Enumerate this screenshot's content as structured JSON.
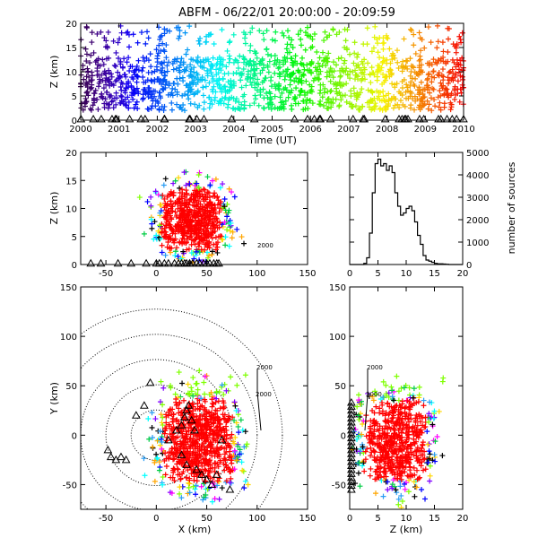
{
  "title": "ABFM - 06/22/01 20:00:00 - 20:09:59",
  "chart_data": [
    {
      "type": "scatter",
      "panel": "altitude-vs-time",
      "ylabel": "Z (km)",
      "xlabel": "Time (UT)",
      "x_ticks": [
        "2000",
        "2001",
        "2002",
        "2003",
        "2004",
        "2005",
        "2006",
        "2007",
        "2008",
        "2009",
        "2010"
      ],
      "y_ticks": [
        "0",
        "5",
        "10",
        "15",
        "20"
      ],
      "xlim": [
        2000,
        2010
      ],
      "ylim": [
        0,
        20
      ],
      "color_scale": "time-coded rainbow (purple to red)",
      "markers": "plus",
      "station_markers": "triangle"
    },
    {
      "type": "scatter",
      "panel": "altitude-vs-x",
      "ylabel": "Z (km)",
      "x_ticks": [
        "-50",
        "0",
        "50",
        "100",
        "150"
      ],
      "y_ticks": [
        "0",
        "5",
        "10",
        "15",
        "20"
      ],
      "xlim": [
        -75,
        150
      ],
      "ylim": [
        0,
        20
      ],
      "annotation": "2000"
    },
    {
      "type": "bar",
      "panel": "altitude-histogram",
      "ylabel": "number of sources",
      "x_ticks": [
        "0",
        "5",
        "10",
        "15",
        "20"
      ],
      "y_ticks": [
        "0",
        "1000",
        "2000",
        "3000",
        "4000",
        "5000"
      ],
      "xlim": [
        0,
        20
      ],
      "ylim": [
        0,
        5000
      ],
      "bins": [
        0,
        0.5,
        1,
        1.5,
        2,
        2.5,
        3,
        3.5,
        4,
        4.5,
        5,
        5.5,
        6,
        6.5,
        7,
        7.5,
        8,
        8.5,
        9,
        9.5,
        10,
        10.5,
        11,
        11.5,
        12,
        12.5,
        13,
        13.5,
        14,
        14.5,
        15,
        15.5,
        16,
        16.5,
        17,
        17.5,
        18,
        18.5,
        19,
        19.5
      ],
      "counts": [
        0,
        0,
        0,
        0,
        0,
        50,
        300,
        1400,
        3200,
        4500,
        4700,
        4400,
        4500,
        4200,
        4400,
        4100,
        3200,
        2600,
        2200,
        2300,
        2500,
        2600,
        2400,
        1900,
        1300,
        900,
        400,
        200,
        150,
        100,
        50,
        30,
        30,
        20,
        10,
        0,
        0,
        0,
        0,
        0
      ]
    },
    {
      "type": "scatter",
      "panel": "plan-view-y-vs-x",
      "ylabel": "Y (km)",
      "xlabel": "X (km)",
      "x_ticks": [
        "-50",
        "0",
        "50",
        "100",
        "150"
      ],
      "y_ticks": [
        "-50",
        "0",
        "50",
        "100",
        "150"
      ],
      "xlim": [
        -75,
        150
      ],
      "ylim": [
        -75,
        150
      ],
      "range_rings": "dotted circles",
      "annotations": [
        "2000",
        "2000"
      ]
    },
    {
      "type": "scatter",
      "panel": "y-vs-altitude",
      "xlabel": "Z (km)",
      "x_ticks": [
        "0",
        "5",
        "10",
        "15",
        "20"
      ],
      "y_ticks": [
        "-50",
        "0",
        "50",
        "100",
        "150"
      ],
      "xlim": [
        0,
        20
      ],
      "ylim": [
        -75,
        150
      ],
      "annotations": [
        "2000",
        "2000"
      ]
    }
  ]
}
